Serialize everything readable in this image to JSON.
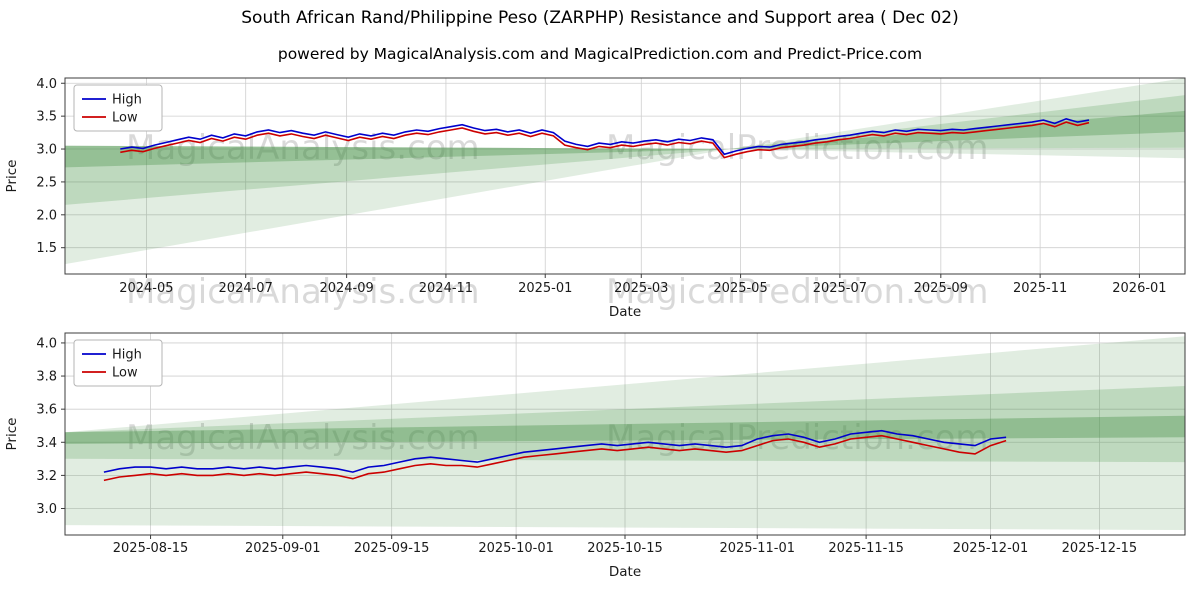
{
  "title": "South African Rand/Philippine Peso (ZARPHP) Resistance and Support area ( Dec 02)",
  "subtitle": "powered by MagicalAnalysis.com and MagicalPrediction.com and Predict-Price.com",
  "watermark": {
    "left": "MagicalAnalysis.com",
    "right": "MagicalPrediction.com"
  },
  "colors": {
    "high_line": "#0000cc",
    "low_line": "#cc0000",
    "band_green": "#469146",
    "grid": "#cfcfcf"
  },
  "chart_data": [
    {
      "type": "line",
      "title": "",
      "xlabel": "Date",
      "ylabel": "Price",
      "legend_position": "upper-left",
      "grid": true,
      "xlim": [
        -20,
        668
      ],
      "ylim": [
        1.1,
        4.08
      ],
      "xticks": [
        {
          "v": 30,
          "label": "2024-05"
        },
        {
          "v": 91,
          "label": "2024-07"
        },
        {
          "v": 153,
          "label": "2024-09"
        },
        {
          "v": 214,
          "label": "2024-11"
        },
        {
          "v": 275,
          "label": "2025-01"
        },
        {
          "v": 334,
          "label": "2025-03"
        },
        {
          "v": 395,
          "label": "2025-05"
        },
        {
          "v": 456,
          "label": "2025-07"
        },
        {
          "v": 518,
          "label": "2025-09"
        },
        {
          "v": 579,
          "label": "2025-11"
        },
        {
          "v": 640,
          "label": "2026-01"
        }
      ],
      "yticks": [
        {
          "v": 1.5,
          "label": "1.5"
        },
        {
          "v": 2.0,
          "label": "2.0"
        },
        {
          "v": 2.5,
          "label": "2.5"
        },
        {
          "v": 3.0,
          "label": "3.0"
        },
        {
          "v": 3.5,
          "label": "3.5"
        },
        {
          "v": 4.0,
          "label": "4.0"
        }
      ],
      "x": [
        14,
        21,
        28,
        35,
        42,
        49,
        56,
        63,
        70,
        77,
        84,
        91,
        98,
        105,
        112,
        119,
        126,
        133,
        140,
        147,
        154,
        161,
        168,
        175,
        182,
        189,
        196,
        203,
        210,
        217,
        224,
        231,
        238,
        245,
        252,
        259,
        266,
        273,
        280,
        287,
        294,
        301,
        308,
        315,
        322,
        329,
        336,
        343,
        350,
        357,
        364,
        371,
        378,
        385,
        392,
        399,
        406,
        413,
        420,
        427,
        434,
        441,
        448,
        455,
        462,
        469,
        476,
        483,
        490,
        497,
        504,
        511,
        518,
        525,
        532,
        539,
        546,
        553,
        560,
        567,
        574,
        581,
        588,
        595,
        602,
        609
      ],
      "series": [
        {
          "name": "High",
          "color": "#0000cc",
          "values": [
            3.0,
            3.03,
            3.01,
            3.06,
            3.1,
            3.14,
            3.18,
            3.15,
            3.21,
            3.17,
            3.23,
            3.2,
            3.26,
            3.29,
            3.25,
            3.28,
            3.24,
            3.21,
            3.26,
            3.22,
            3.18,
            3.23,
            3.2,
            3.24,
            3.21,
            3.26,
            3.29,
            3.27,
            3.31,
            3.34,
            3.37,
            3.32,
            3.28,
            3.3,
            3.26,
            3.29,
            3.24,
            3.29,
            3.25,
            3.12,
            3.07,
            3.04,
            3.09,
            3.07,
            3.11,
            3.09,
            3.12,
            3.14,
            3.11,
            3.15,
            3.13,
            3.17,
            3.14,
            2.92,
            2.97,
            3.01,
            3.04,
            3.03,
            3.07,
            3.09,
            3.11,
            3.14,
            3.16,
            3.19,
            3.21,
            3.24,
            3.27,
            3.25,
            3.29,
            3.27,
            3.3,
            3.29,
            3.28,
            3.3,
            3.29,
            3.31,
            3.33,
            3.35,
            3.37,
            3.39,
            3.41,
            3.44,
            3.39,
            3.46,
            3.41,
            3.44
          ]
        },
        {
          "name": "Low",
          "color": "#cc0000",
          "values": [
            2.95,
            2.98,
            2.96,
            3.01,
            3.05,
            3.09,
            3.13,
            3.1,
            3.16,
            3.12,
            3.18,
            3.15,
            3.21,
            3.24,
            3.2,
            3.23,
            3.19,
            3.16,
            3.21,
            3.17,
            3.13,
            3.18,
            3.15,
            3.19,
            3.16,
            3.21,
            3.24,
            3.22,
            3.26,
            3.29,
            3.32,
            3.27,
            3.23,
            3.25,
            3.21,
            3.24,
            3.19,
            3.24,
            3.2,
            3.06,
            3.02,
            2.99,
            3.04,
            3.02,
            3.06,
            3.04,
            3.07,
            3.09,
            3.06,
            3.1,
            3.08,
            3.12,
            3.09,
            2.87,
            2.92,
            2.96,
            2.99,
            2.98,
            3.02,
            3.04,
            3.06,
            3.09,
            3.11,
            3.14,
            3.16,
            3.19,
            3.22,
            3.2,
            3.24,
            3.22,
            3.25,
            3.24,
            3.23,
            3.25,
            3.24,
            3.26,
            3.28,
            3.3,
            3.32,
            3.34,
            3.36,
            3.39,
            3.34,
            3.41,
            3.36,
            3.4
          ]
        }
      ],
      "bands": [
        {
          "points": [
            [
              -20,
              1.25
            ],
            [
              -20,
              3.05
            ],
            [
              388,
              3.0
            ]
          ],
          "fill": "rgba(70,145,70,0.16)"
        },
        {
          "points": [
            [
              -20,
              2.15
            ],
            [
              -20,
              3.05
            ],
            [
              388,
              3.0
            ]
          ],
          "fill": "rgba(70,145,70,0.22)"
        },
        {
          "points": [
            [
              -20,
              2.72
            ],
            [
              -20,
              3.05
            ],
            [
              388,
              3.0
            ]
          ],
          "fill": "rgba(70,145,70,0.34)"
        },
        {
          "points": [
            [
              388,
              3.0
            ],
            [
              668,
              4.08
            ],
            [
              668,
              2.86
            ]
          ],
          "fill": "rgba(70,145,70,0.16)"
        },
        {
          "points": [
            [
              388,
              3.0
            ],
            [
              668,
              3.82
            ],
            [
              668,
              3.02
            ]
          ],
          "fill": "rgba(70,145,70,0.22)"
        },
        {
          "points": [
            [
              388,
              3.0
            ],
            [
              668,
              3.58
            ],
            [
              668,
              3.26
            ]
          ],
          "fill": "rgba(70,145,70,0.34)"
        }
      ]
    },
    {
      "type": "line",
      "title": "",
      "xlabel": "Date",
      "ylabel": "Price",
      "legend_position": "upper-left",
      "grid": true,
      "xlim": [
        3,
        147
      ],
      "ylim": [
        2.84,
        4.06
      ],
      "xticks": [
        {
          "v": 14,
          "label": "2025-08-15"
        },
        {
          "v": 31,
          "label": "2025-09-01"
        },
        {
          "v": 45,
          "label": "2025-09-15"
        },
        {
          "v": 61,
          "label": "2025-10-01"
        },
        {
          "v": 75,
          "label": "2025-10-15"
        },
        {
          "v": 92,
          "label": "2025-11-01"
        },
        {
          "v": 106,
          "label": "2025-11-15"
        },
        {
          "v": 122,
          "label": "2025-12-01"
        },
        {
          "v": 136,
          "label": "2025-12-15"
        }
      ],
      "yticks": [
        {
          "v": 3.0,
          "label": "3.0"
        },
        {
          "v": 3.2,
          "label": "3.2"
        },
        {
          "v": 3.4,
          "label": "3.4"
        },
        {
          "v": 3.6,
          "label": "3.6"
        },
        {
          "v": 3.8,
          "label": "3.8"
        },
        {
          "v": 4.0,
          "label": "4.0"
        }
      ],
      "x": [
        8,
        10,
        12,
        14,
        16,
        18,
        20,
        22,
        24,
        26,
        28,
        30,
        32,
        34,
        36,
        38,
        40,
        42,
        44,
        46,
        48,
        50,
        52,
        54,
        56,
        58,
        60,
        62,
        64,
        66,
        68,
        70,
        72,
        74,
        76,
        78,
        80,
        82,
        84,
        86,
        88,
        90,
        92,
        94,
        96,
        98,
        100,
        102,
        104,
        106,
        108,
        110,
        112,
        114,
        116,
        118,
        120,
        122,
        124
      ],
      "series": [
        {
          "name": "High",
          "color": "#0000cc",
          "values": [
            3.22,
            3.24,
            3.25,
            3.25,
            3.24,
            3.25,
            3.24,
            3.24,
            3.25,
            3.24,
            3.25,
            3.24,
            3.25,
            3.26,
            3.25,
            3.24,
            3.22,
            3.25,
            3.26,
            3.28,
            3.3,
            3.31,
            3.3,
            3.29,
            3.28,
            3.3,
            3.32,
            3.34,
            3.35,
            3.36,
            3.37,
            3.38,
            3.39,
            3.38,
            3.39,
            3.4,
            3.39,
            3.38,
            3.39,
            3.38,
            3.37,
            3.38,
            3.42,
            3.44,
            3.45,
            3.43,
            3.4,
            3.42,
            3.45,
            3.46,
            3.47,
            3.45,
            3.44,
            3.42,
            3.4,
            3.39,
            3.38,
            3.42,
            3.43
          ]
        },
        {
          "name": "Low",
          "color": "#cc0000",
          "values": [
            3.17,
            3.19,
            3.2,
            3.21,
            3.2,
            3.21,
            3.2,
            3.2,
            3.21,
            3.2,
            3.21,
            3.2,
            3.21,
            3.22,
            3.21,
            3.2,
            3.18,
            3.21,
            3.22,
            3.24,
            3.26,
            3.27,
            3.26,
            3.26,
            3.25,
            3.27,
            3.29,
            3.31,
            3.32,
            3.33,
            3.34,
            3.35,
            3.36,
            3.35,
            3.36,
            3.37,
            3.36,
            3.35,
            3.36,
            3.35,
            3.34,
            3.35,
            3.38,
            3.41,
            3.42,
            3.4,
            3.37,
            3.39,
            3.42,
            3.43,
            3.44,
            3.42,
            3.4,
            3.38,
            3.36,
            3.34,
            3.33,
            3.38,
            3.41
          ]
        }
      ],
      "bands": [
        {
          "points": [
            [
              3,
              2.9
            ],
            [
              3,
              3.46
            ],
            [
              147,
              4.04
            ],
            [
              147,
              2.87
            ]
          ],
          "fill": "rgba(70,145,70,0.16)"
        },
        {
          "points": [
            [
              3,
              3.3
            ],
            [
              3,
              3.46
            ],
            [
              147,
              3.74
            ],
            [
              147,
              3.28
            ]
          ],
          "fill": "rgba(70,145,70,0.22)"
        },
        {
          "points": [
            [
              3,
              3.39
            ],
            [
              3,
              3.46
            ],
            [
              147,
              3.56
            ],
            [
              147,
              3.43
            ]
          ],
          "fill": "rgba(70,145,70,0.38)"
        }
      ]
    }
  ]
}
